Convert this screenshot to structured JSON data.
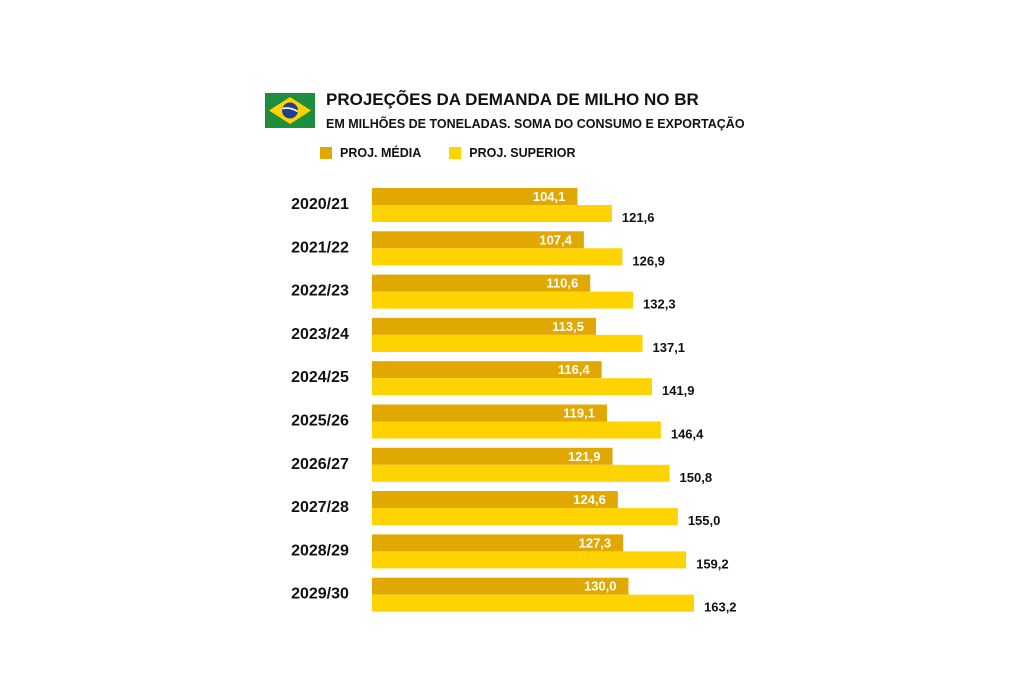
{
  "header": {
    "title": "PROJEÇÕES DA DEMANDA DE MILHO NO BR",
    "subtitle": "EM MILHÕES DE TONELADAS. SOMA DO CONSUMO E EXPORTAÇÃO",
    "flag_icon": "brazil-flag-icon"
  },
  "legend": {
    "placement": "top-left",
    "items": [
      {
        "label": "PROJ. MÉDIA",
        "color": "#E0A800"
      },
      {
        "label": "PROJ. SUPERIOR",
        "color": "#FFD300"
      }
    ]
  },
  "chart_data": {
    "type": "bar",
    "orientation": "horizontal",
    "title": "PROJEÇÕES DA DEMANDA DE MILHO NO BR",
    "subtitle": "EM MILHÕES DE TONELADAS. SOMA DO CONSUMO E EXPORTAÇÃO",
    "xlabel": "",
    "ylabel": "",
    "xlim": [
      0,
      163.2
    ],
    "grid": false,
    "categories": [
      "2020/21",
      "2021/22",
      "2022/23",
      "2023/24",
      "2024/25",
      "2025/26",
      "2026/27",
      "2027/28",
      "2028/29",
      "2029/30"
    ],
    "series": [
      {
        "name": "PROJ. MÉDIA",
        "color": "#E0A800",
        "values": [
          104.1,
          107.4,
          110.6,
          113.5,
          116.4,
          119.1,
          121.9,
          124.6,
          127.3,
          130.0
        ],
        "labels": [
          "104,1",
          "107,4",
          "110,6",
          "113,5",
          "116,4",
          "119,1",
          "121,9",
          "124,6",
          "127,3",
          "130,0"
        ]
      },
      {
        "name": "PROJ. SUPERIOR",
        "color": "#FFD300",
        "values": [
          121.6,
          126.9,
          132.3,
          137.1,
          141.9,
          146.4,
          150.8,
          155.0,
          159.2,
          163.2
        ],
        "labels": [
          "121,6",
          "126,9",
          "132,3",
          "137,1",
          "141,9",
          "146,4",
          "150,8",
          "155,0",
          "159,2",
          "163,2"
        ]
      }
    ]
  }
}
